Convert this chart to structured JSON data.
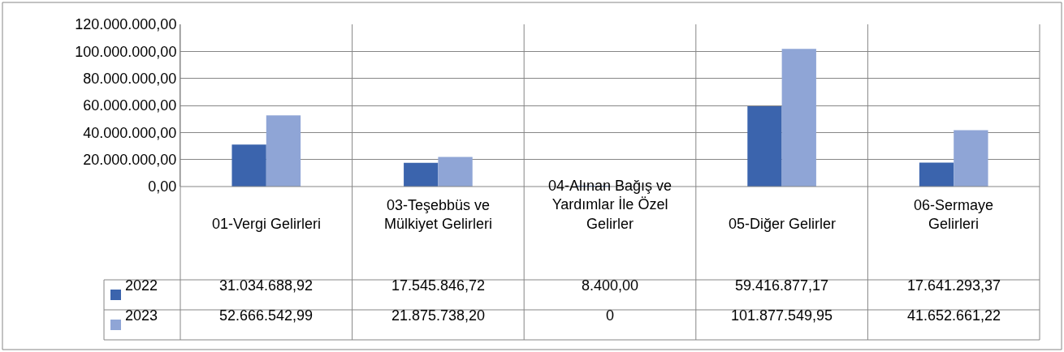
{
  "chart_data": {
    "type": "bar",
    "categories": [
      "01-Vergi Gelirleri",
      "03-Teşebbüs ve Mülkiyet Gelirleri",
      "04-Alınan Bağış ve Yardımlar İle Özel Gelirler",
      "05-Diğer Gelirler",
      "06-Sermaye Gelirleri"
    ],
    "series": [
      {
        "name": "2022",
        "color": "#3b64ad",
        "values": [
          31034688.92,
          17545846.72,
          8400.0,
          59416877.17,
          17641293.37
        ],
        "value_labels": [
          "31.034.688,92",
          "17.545.846,72",
          "8.400,00",
          "59.416.877,17",
          "17.641.293,37"
        ]
      },
      {
        "name": "2023",
        "color": "#8fa5d6",
        "values": [
          52666542.99,
          21875738.2,
          0,
          101877549.95,
          41652661.22
        ],
        "value_labels": [
          "52.666.542,99",
          "21.875.738,20",
          "0",
          "101.877.549,95",
          "41.652.661,22"
        ]
      }
    ],
    "ylim": [
      0,
      120000000
    ],
    "yticks": [
      {
        "value": 0,
        "label": "0,00"
      },
      {
        "value": 20000000,
        "label": "20.000.000,00"
      },
      {
        "value": 40000000,
        "label": "40.000.000,00"
      },
      {
        "value": 60000000,
        "label": "60.000.000,00"
      },
      {
        "value": 80000000,
        "label": "80.000.000,00"
      },
      {
        "value": 100000000,
        "label": "100.000.000,00"
      },
      {
        "value": 120000000,
        "label": "120.000.000,00"
      }
    ],
    "grid": "y",
    "legend": "bottom"
  }
}
